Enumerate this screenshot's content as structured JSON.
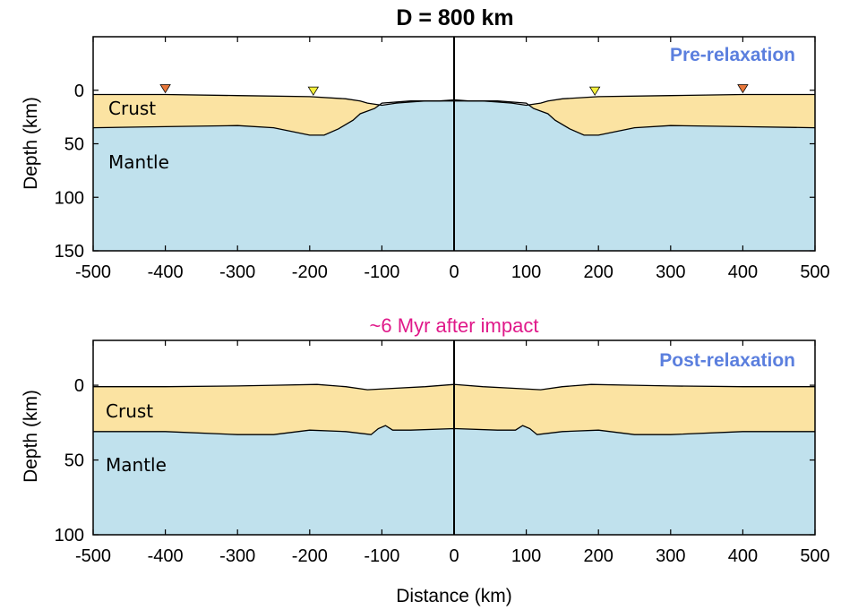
{
  "title": "D = 800 km",
  "subtitle": "~6 Myr after impact",
  "colors": {
    "crust": "#fbe3a2",
    "mantle": "#c0e1ed",
    "tag": "#5b7fde",
    "subtitle": "#e0198a",
    "marker_orange": "#e8773a",
    "marker_yellow": "#f5f03c"
  },
  "chart_data": [
    {
      "type": "area",
      "panel_label": "Pre-relaxation",
      "xlabel": "",
      "ylabel": "Depth (km)",
      "xlim": [
        -500,
        500
      ],
      "ylim": [
        150,
        -50
      ],
      "xticks": [
        "-500",
        "-400",
        "-300",
        "-200",
        "-100",
        "0",
        "100",
        "200",
        "300",
        "400",
        "500"
      ],
      "yticks": [
        "0",
        "50",
        "100",
        "150"
      ],
      "layer_labels": [
        "Crust",
        "Mantle"
      ],
      "series": [
        {
          "name": "Crust",
          "x": [
            -500,
            -400,
            -300,
            -200,
            -150,
            -130,
            -120,
            -100,
            -80,
            -60,
            -40,
            -20,
            0,
            20,
            40,
            60,
            80,
            100,
            120,
            130,
            150,
            200,
            300,
            400,
            500
          ],
          "y": [
            4,
            4,
            5,
            6,
            8,
            10,
            12,
            14,
            12,
            11,
            10,
            10,
            9,
            10,
            10,
            11,
            12,
            14,
            12,
            10,
            8,
            6,
            5,
            4,
            4
          ]
        },
        {
          "name": "Mantle",
          "x": [
            -500,
            -400,
            -300,
            -250,
            -200,
            -180,
            -160,
            -140,
            -130,
            -110,
            -100,
            -60,
            0,
            60,
            100,
            110,
            130,
            140,
            160,
            180,
            200,
            250,
            300,
            400,
            500
          ],
          "y": [
            35,
            34,
            33,
            35,
            42,
            42,
            36,
            28,
            22,
            17,
            12,
            10,
            10,
            10,
            12,
            17,
            22,
            28,
            36,
            42,
            42,
            35,
            33,
            34,
            35
          ]
        }
      ],
      "markers": [
        {
          "x": -400,
          "color": "orange"
        },
        {
          "x": -195,
          "color": "yellow"
        },
        {
          "x": 195,
          "color": "yellow"
        },
        {
          "x": 400,
          "color": "orange"
        }
      ]
    },
    {
      "type": "area",
      "panel_label": "Post-relaxation",
      "xlabel": "Distance (km)",
      "ylabel": "Depth (km)",
      "xlim": [
        -500,
        500
      ],
      "ylim": [
        100,
        -30
      ],
      "xticks": [
        "-500",
        "-400",
        "-300",
        "-200",
        "-100",
        "0",
        "100",
        "200",
        "300",
        "400",
        "500"
      ],
      "yticks": [
        "0",
        "50",
        "100"
      ],
      "layer_labels": [
        "Crust",
        "Mantle"
      ],
      "series": [
        {
          "name": "Crust",
          "x": [
            -500,
            -400,
            -300,
            -250,
            -190,
            -150,
            -120,
            -80,
            -40,
            0,
            40,
            80,
            120,
            150,
            190,
            250,
            300,
            400,
            500
          ],
          "y": [
            1,
            1,
            0.5,
            0,
            -0.5,
            1,
            3,
            2,
            1,
            -0.5,
            1,
            2,
            3,
            1,
            -0.5,
            0,
            0.5,
            1,
            1
          ]
        },
        {
          "name": "Mantle",
          "x": [
            -500,
            -400,
            -300,
            -250,
            -200,
            -150,
            -115,
            -105,
            -95,
            -85,
            -60,
            0,
            60,
            85,
            95,
            105,
            115,
            150,
            200,
            250,
            300,
            400,
            500
          ],
          "y": [
            31,
            31,
            33,
            33,
            30,
            31,
            33,
            29,
            27,
            30,
            30,
            29,
            30,
            30,
            27,
            29,
            33,
            31,
            30,
            33,
            33,
            31,
            31
          ]
        }
      ],
      "markers": []
    }
  ]
}
